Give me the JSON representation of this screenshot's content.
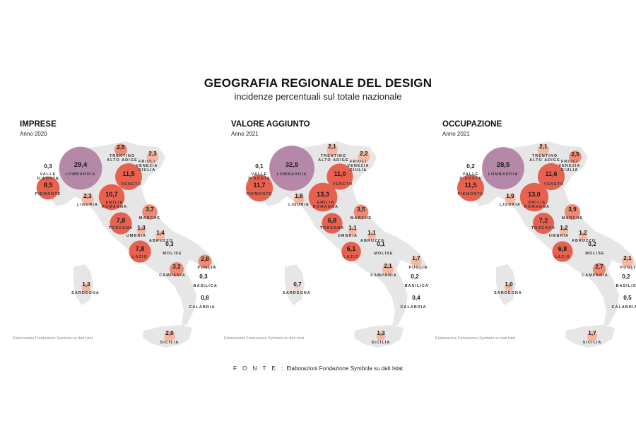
{
  "title": "GEOGRAFIA REGIONALE DEL DESIGN",
  "subtitle": "incidenze percentuali sul totale nazionale",
  "source_credit": "Elaborazioni Fondazione Symbola su dati Istat",
  "footer": {
    "label": "F O N T E :",
    "text": "Elaborazioni Fondazione Symbola su dati Istat"
  },
  "colors": {
    "map": "#e6e6e6",
    "lombardia": "#b588a8",
    "high": "#e8614f",
    "mid": "#ee8a72",
    "low": "#f5b7a2",
    "tiny": "#f9d4c6"
  },
  "regions": [
    {
      "key": "lombardia",
      "label": "LOMBARDIA"
    },
    {
      "key": "trentino",
      "label": "TRENTINO ALTO ADIGE"
    },
    {
      "key": "friuli",
      "label": "FRIULI VENEZIA GIULIA"
    },
    {
      "key": "veneto",
      "label": "VENETO"
    },
    {
      "key": "valle",
      "label": "VALLE D'AOSTA"
    },
    {
      "key": "piemonte",
      "label": "PIEMONTE"
    },
    {
      "key": "liguria",
      "label": "LIGURIA"
    },
    {
      "key": "emilia",
      "label": "EMILIA ROMAGNA"
    },
    {
      "key": "marche",
      "label": "MARCHE"
    },
    {
      "key": "toscana",
      "label": "TOSCANA"
    },
    {
      "key": "umbria",
      "label": "UMBRIA"
    },
    {
      "key": "abruzzo",
      "label": "ABRUZZO"
    },
    {
      "key": "molise",
      "label": "MOLISE"
    },
    {
      "key": "lazio",
      "label": "LAZIO"
    },
    {
      "key": "puglia",
      "label": "PUGLIA"
    },
    {
      "key": "campania",
      "label": "CAMPANIA"
    },
    {
      "key": "basilicata",
      "label": "BASILICATA"
    },
    {
      "key": "sardegna",
      "label": "SARDEGNA"
    },
    {
      "key": "calabria",
      "label": "CALABRIA"
    },
    {
      "key": "sicilia",
      "label": "SICILIA"
    }
  ],
  "panels": [
    {
      "title": "IMPRESE",
      "year": "Anno 2020",
      "values": {
        "lombardia": "29,4",
        "trentino": "2,5",
        "friuli": "2,3",
        "veneto": "11,5",
        "valle": "0,3",
        "piemonte": "8,5",
        "liguria": "2,3",
        "emilia": "10,7",
        "marche": "3,7",
        "toscana": "7,8",
        "umbria": "1,3",
        "abruzzo": "1,4",
        "molise": "0,3",
        "lazio": "7,8",
        "puglia": "2,8",
        "campania": "3,2",
        "basilicata": "0,3",
        "sardegna": "1,3",
        "calabria": "0,8",
        "sicilia": "2,0"
      }
    },
    {
      "title": "VALORE AGGIUNTO",
      "year": "Anno 2021",
      "values": {
        "lombardia": "32,5",
        "trentino": "2,1",
        "friuli": "2,2",
        "veneto": "11,0",
        "valle": "0,1",
        "piemonte": "11,7",
        "liguria": "1,8",
        "emilia": "13,3",
        "marche": "3,5",
        "toscana": "6,8",
        "umbria": "1,1",
        "abruzzo": "1,1",
        "molise": "0,1",
        "lazio": "6,1",
        "puglia": "1,7",
        "campania": "2,1",
        "basilicata": "0,2",
        "sardegna": "0,7",
        "calabria": "0,4",
        "sicilia": "1,3"
      }
    },
    {
      "title": "OCCUPAZIONE",
      "year": "Anno 2021",
      "values": {
        "lombardia": "28,5",
        "trentino": "2,1",
        "friuli": "2,5",
        "veneto": "11,6",
        "valle": "0,2",
        "piemonte": "11,5",
        "liguria": "1,9",
        "emilia": "13,0",
        "marche": "3,9",
        "toscana": "7,2",
        "umbria": "1,2",
        "abruzzo": "1,2",
        "molise": "0,2",
        "lazio": "6,8",
        "puglia": "2,1",
        "campania": "2,7",
        "basilicata": "0,2",
        "sardegna": "1,0",
        "calabria": "0,5",
        "sicilia": "1,7"
      }
    }
  ]
}
